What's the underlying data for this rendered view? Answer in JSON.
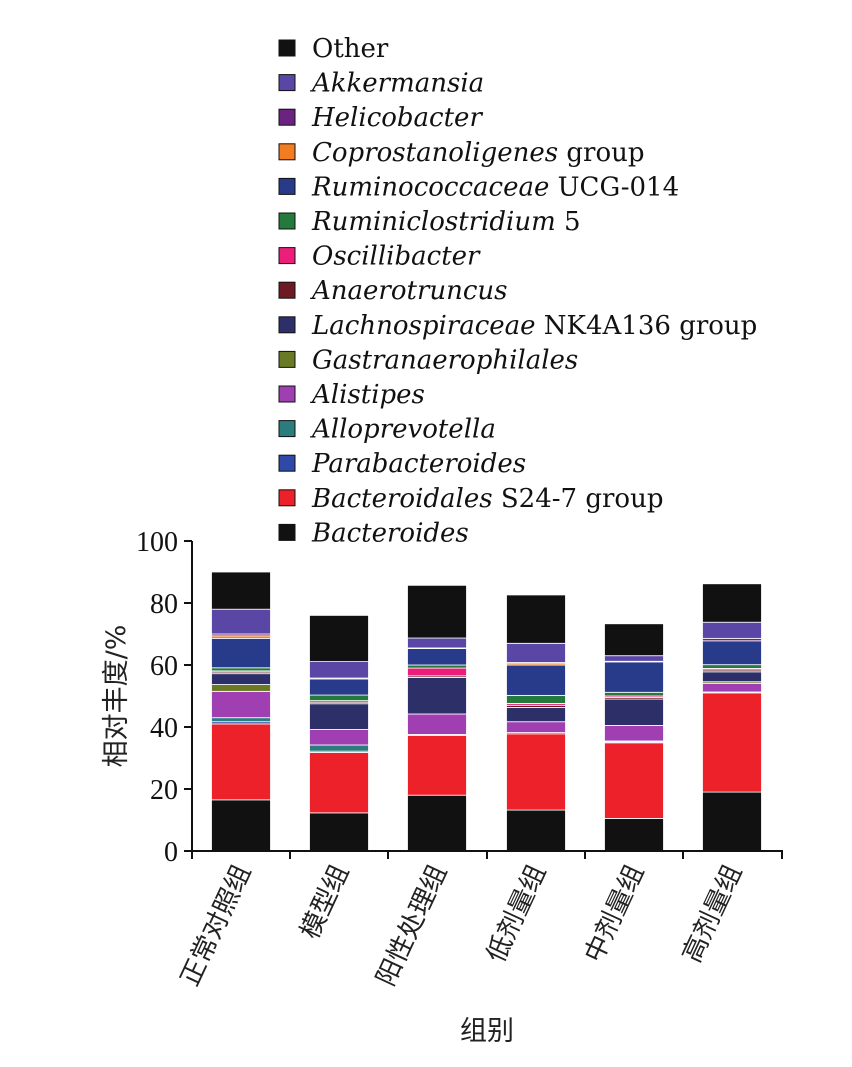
{
  "chart_data": {
    "type": "bar",
    "stacked": true,
    "xlabel": "组别",
    "ylabel": "相对丰度/%",
    "ylim": [
      0,
      100
    ],
    "yticks": [
      0,
      20,
      40,
      60,
      80,
      100
    ],
    "grid": false,
    "legend_position": "top",
    "categories": [
      "正常对照组",
      "模型组",
      "阳性处理组",
      "低剂量组",
      "中剂量组",
      "高剂量组"
    ],
    "series": [
      {
        "name": "Bacteroides",
        "italic": "Bacteroides",
        "plain": "",
        "color": "#111111",
        "values": [
          16.5,
          12.3,
          18.0,
          13.2,
          10.5,
          19.0
        ]
      },
      {
        "name": "Bacteroidales S24-7 group",
        "italic": "Bacteroidales",
        "plain": " S24-7 group",
        "color": "#ed2129",
        "values": [
          24.5,
          19.5,
          19.3,
          24.6,
          24.4,
          32.0
        ]
      },
      {
        "name": "Parabacteroides",
        "italic": "Parabacteroides",
        "plain": "",
        "color": "#2e49a8",
        "values": [
          0.7,
          0.4,
          0.3,
          0.4,
          0.3,
          0.3
        ]
      },
      {
        "name": "Alloprevotella",
        "italic": "Alloprevotella",
        "plain": "",
        "color": "#2b7d7d",
        "values": [
          1.3,
          2.0,
          0.0,
          0.0,
          0.3,
          0.0
        ]
      },
      {
        "name": "Alistipes",
        "italic": "Alistipes",
        "plain": "",
        "color": "#a03fb2",
        "values": [
          8.5,
          5.0,
          6.6,
          3.5,
          5.0,
          2.8
        ]
      },
      {
        "name": "Gastranaerophilales",
        "italic": "Gastranaerophilales",
        "plain": "",
        "color": "#6a7a24",
        "values": [
          2.2,
          0.0,
          0.0,
          0.0,
          0.0,
          0.5
        ]
      },
      {
        "name": "Lachnospiraceae NK4A136 group",
        "italic": "Lachnospiraceae",
        "plain": " NK4A136 group",
        "color": "#2d2f68",
        "values": [
          3.5,
          8.3,
          11.8,
          4.6,
          8.5,
          3.2
        ]
      },
      {
        "name": "Anaerotruncus",
        "italic": "Anaerotruncus",
        "plain": "",
        "color": "#6e1a24",
        "values": [
          0.5,
          0.5,
          0.5,
          0.7,
          0.5,
          0.6
        ]
      },
      {
        "name": "Oscillibacter",
        "italic": "Oscillibacter",
        "plain": "",
        "color": "#ec1e7c",
        "values": [
          0.4,
          0.5,
          2.5,
          0.6,
          0.5,
          0.5
        ]
      },
      {
        "name": "Ruminiclostridium 5",
        "italic": "Ruminiclostridium",
        "plain": " 5",
        "color": "#237a3c",
        "values": [
          1.0,
          1.8,
          1.0,
          2.6,
          1.2,
          1.2
        ]
      },
      {
        "name": "Ruminococcaceae UCG-014",
        "italic": "Ruminococcaceae",
        "plain": " UCG-014",
        "color": "#283a8a",
        "values": [
          9.5,
          5.2,
          5.3,
          9.8,
          9.8,
          7.7
        ]
      },
      {
        "name": "Coprostanoligenes group",
        "italic": "Coprostanoligenes",
        "plain": " group",
        "color": "#f47c20",
        "values": [
          0.8,
          0.0,
          0.0,
          0.6,
          0.0,
          0.0
        ]
      },
      {
        "name": "Helicobacter",
        "italic": "Helicobacter",
        "plain": "",
        "color": "#6a2380",
        "values": [
          0.6,
          0.3,
          0.2,
          0.2,
          0.2,
          0.8
        ]
      },
      {
        "name": "Akkermansia",
        "italic": "Akkermansia",
        "plain": "",
        "color": "#5a46a5",
        "values": [
          8.0,
          5.3,
          3.2,
          6.2,
          1.8,
          5.2
        ]
      },
      {
        "name": "Other",
        "italic": "",
        "plain": "Other",
        "color": "#111111",
        "values": [
          12.0,
          14.9,
          17.0,
          15.6,
          10.3,
          12.4
        ]
      }
    ]
  }
}
